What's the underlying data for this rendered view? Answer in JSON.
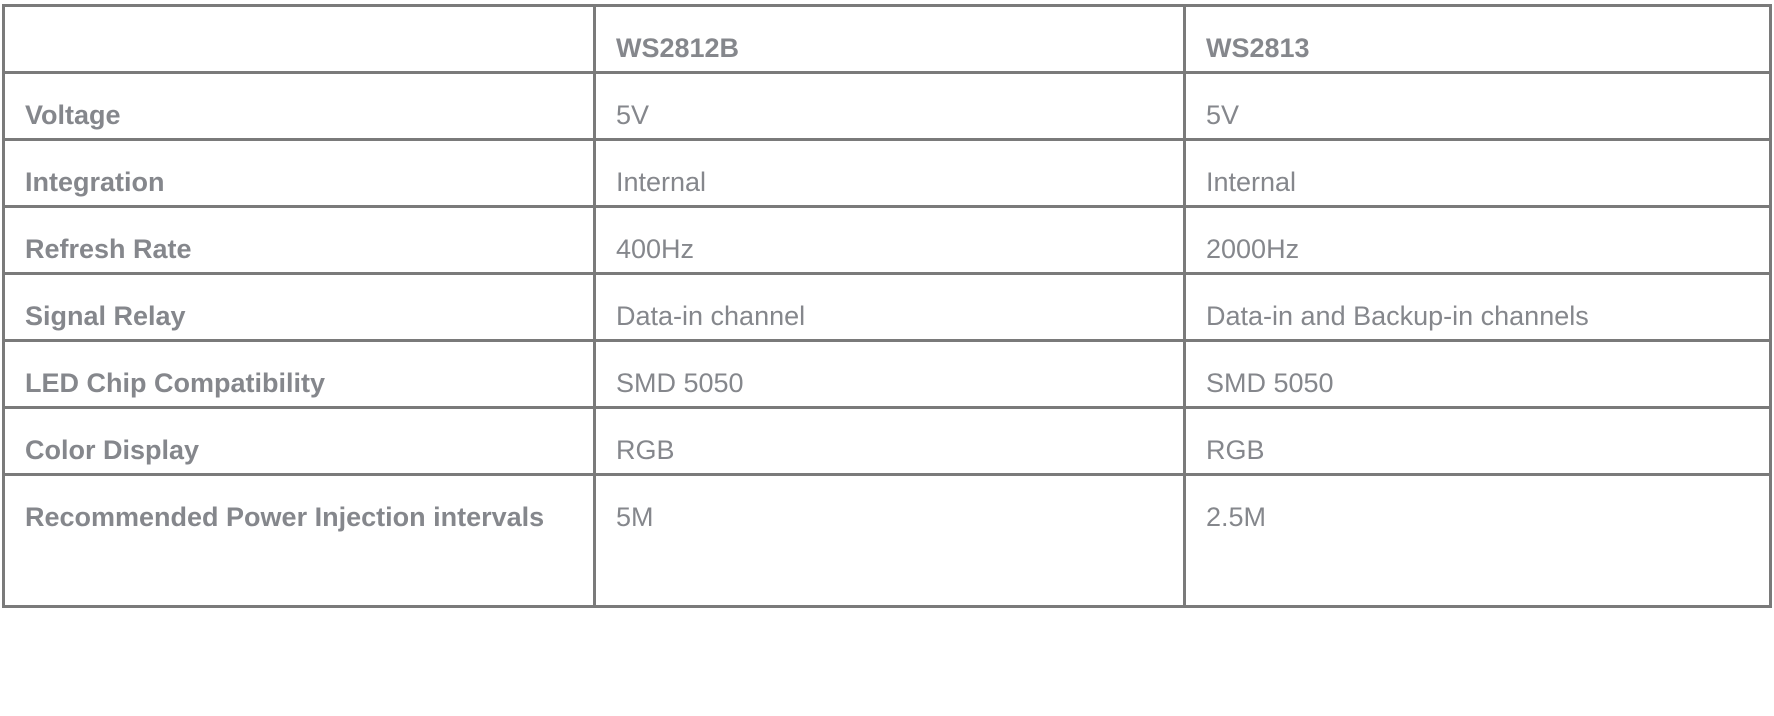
{
  "table": {
    "headers": [
      "",
      "WS2812B",
      "WS2813"
    ],
    "rows": [
      {
        "label": "Voltage",
        "ws2812b": "5V",
        "ws2813": "5V"
      },
      {
        "label": "Integration",
        "ws2812b": "Internal",
        "ws2813": "Internal"
      },
      {
        "label": "Refresh Rate",
        "ws2812b": "400Hz",
        "ws2813": "2000Hz"
      },
      {
        "label": "Signal Relay",
        "ws2812b": "Data-in channel",
        "ws2813": "Data-in and Backup-in channels"
      },
      {
        "label": "LED Chip Compatibility",
        "ws2812b": "SMD 5050",
        "ws2813": "SMD 5050"
      },
      {
        "label": "Color Display",
        "ws2812b": "RGB",
        "ws2813": "RGB"
      },
      {
        "label": "Recommended Power Injection intervals",
        "ws2812b": "5M",
        "ws2813": "2.5M"
      }
    ]
  }
}
